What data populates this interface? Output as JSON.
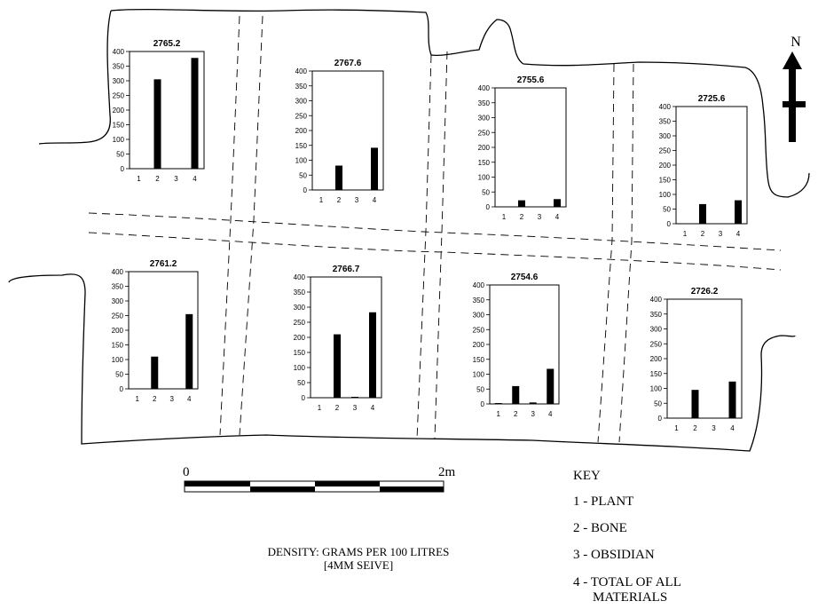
{
  "colors": {
    "ink": "#000000",
    "paper": "#ffffff"
  },
  "north": {
    "label": "N",
    "icon": "north-arrow-icon"
  },
  "scale_bar": {
    "start_label": "0",
    "end_label": "2m"
  },
  "caption": {
    "line1": "DENSITY: GRAMS PER 100 LITRES",
    "line2": "[4MM SEIVE]"
  },
  "key": {
    "title": "KEY",
    "items": [
      "1 - PLANT",
      "2 - BONE",
      "3 - OBSIDIAN",
      "4 - TOTAL OF ALL",
      "MATERIALS"
    ]
  },
  "chart_data": [
    {
      "type": "bar",
      "title": "2765.2",
      "categories": [
        "1",
        "2",
        "3",
        "4"
      ],
      "values": [
        0,
        305,
        0,
        378
      ],
      "ylim": [
        0,
        400
      ],
      "yticks": [
        0,
        50,
        100,
        150,
        200,
        250,
        300,
        350,
        400
      ]
    },
    {
      "type": "bar",
      "title": "2767.6",
      "categories": [
        "1",
        "2",
        "3",
        "4"
      ],
      "values": [
        0,
        82,
        0,
        142
      ],
      "ylim": [
        0,
        400
      ],
      "yticks": [
        0,
        50,
        100,
        150,
        200,
        250,
        300,
        350,
        400
      ]
    },
    {
      "type": "bar",
      "title": "2755.6",
      "categories": [
        "1",
        "2",
        "3",
        "4"
      ],
      "values": [
        0,
        22,
        0,
        26
      ],
      "ylim": [
        0,
        400
      ],
      "yticks": [
        0,
        50,
        100,
        150,
        200,
        250,
        300,
        350,
        400
      ]
    },
    {
      "type": "bar",
      "title": "2725.6",
      "categories": [
        "1",
        "2",
        "3",
        "4"
      ],
      "values": [
        0,
        67,
        0,
        80
      ],
      "ylim": [
        0,
        400
      ],
      "yticks": [
        0,
        50,
        100,
        150,
        200,
        250,
        300,
        350,
        400
      ]
    },
    {
      "type": "bar",
      "title": "2761.2",
      "categories": [
        "1",
        "2",
        "3",
        "4"
      ],
      "values": [
        0,
        110,
        0,
        255
      ],
      "ylim": [
        0,
        400
      ],
      "yticks": [
        0,
        50,
        100,
        150,
        200,
        250,
        300,
        350,
        400
      ]
    },
    {
      "type": "bar",
      "title": "2766.7",
      "categories": [
        "1",
        "2",
        "3",
        "4"
      ],
      "values": [
        0,
        210,
        3,
        283
      ],
      "ylim": [
        0,
        400
      ],
      "yticks": [
        0,
        50,
        100,
        150,
        200,
        250,
        300,
        350,
        400
      ]
    },
    {
      "type": "bar",
      "title": "2754.6",
      "categories": [
        "1",
        "2",
        "3",
        "4"
      ],
      "values": [
        3,
        60,
        5,
        118
      ],
      "ylim": [
        0,
        400
      ],
      "yticks": [
        0,
        50,
        100,
        150,
        200,
        250,
        300,
        350,
        400
      ]
    },
    {
      "type": "bar",
      "title": "2726.2",
      "categories": [
        "1",
        "2",
        "3",
        "4"
      ],
      "values": [
        0,
        95,
        0,
        123
      ],
      "ylim": [
        0,
        400
      ],
      "yticks": [
        0,
        50,
        100,
        150,
        200,
        250,
        300,
        350,
        400
      ]
    }
  ]
}
